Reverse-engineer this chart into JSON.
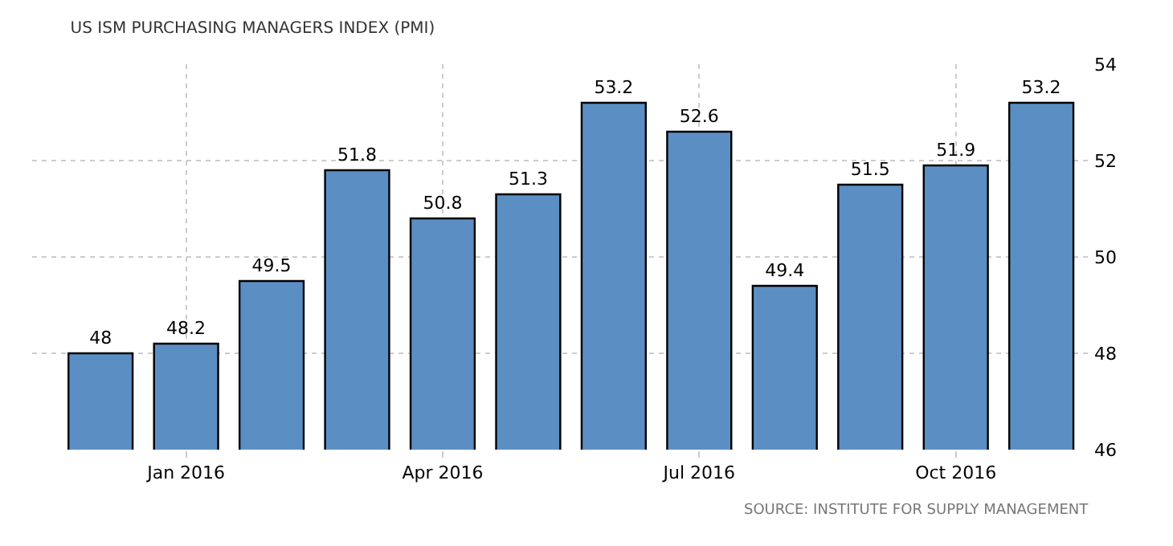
{
  "chart_data": {
    "type": "bar",
    "title": "US ISM PURCHASING MANAGERS INDEX (PMI)",
    "categories": [
      null,
      "Jan 2016",
      null,
      null,
      "Apr 2016",
      null,
      null,
      "Jul 2016",
      null,
      null,
      "Oct 2016",
      null
    ],
    "values": [
      48,
      48.2,
      49.5,
      51.8,
      50.8,
      51.3,
      53.2,
      52.6,
      49.4,
      51.5,
      51.9,
      53.2
    ],
    "color": "#5b8fc4",
    "ylim": [
      46,
      54
    ],
    "yticks": [
      46,
      48,
      50,
      52,
      54
    ],
    "grid": true,
    "data_labels": true,
    "annotations": [
      "SOURCE: INSTITUTE FOR SUPPLY MANAGEMENT"
    ]
  }
}
